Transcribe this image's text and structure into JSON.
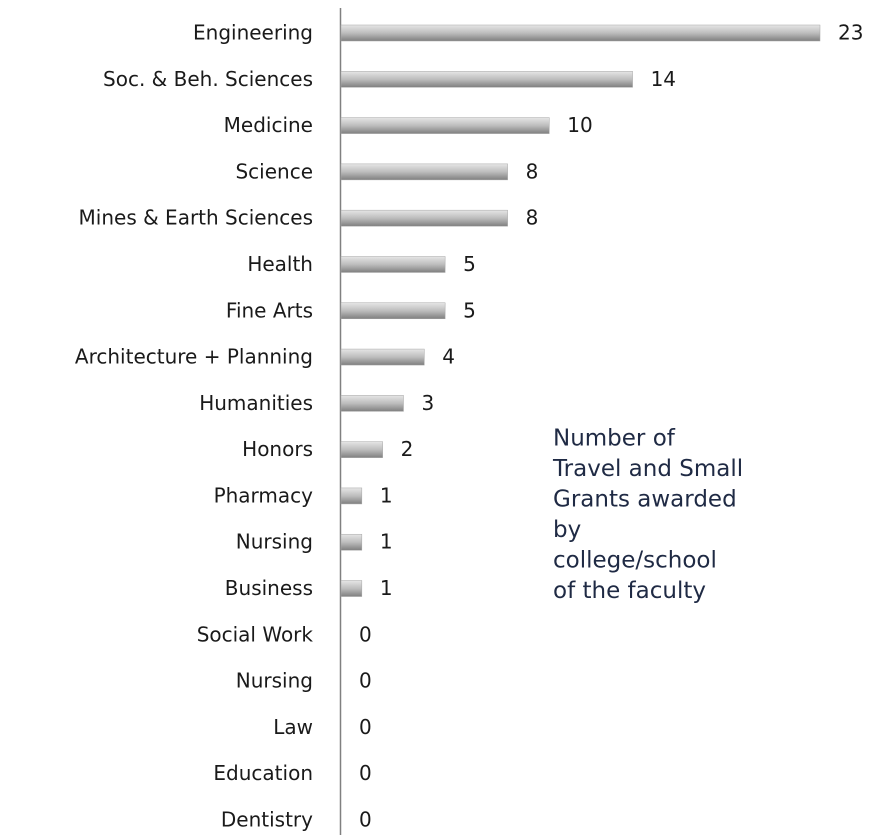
{
  "chart_data": {
    "type": "barh",
    "categories": [
      "Engineering",
      "Soc. & Beh. Sciences",
      "Medicine",
      "Science",
      "Mines & Earth Sciences",
      "Health",
      "Fine Arts",
      "Architecture + Planning",
      "Humanities",
      "Honors",
      "Pharmacy",
      "Nursing",
      "Business",
      "Social Work",
      "Nursing",
      "Law",
      "Education",
      "Dentistry"
    ],
    "values": [
      23,
      14,
      10,
      8,
      8,
      5,
      5,
      4,
      3,
      2,
      1,
      1,
      1,
      0,
      0,
      0,
      0,
      0
    ],
    "color": "#a6a6a6",
    "annotation": [
      "Number of",
      "Travel and Small",
      "Grants awarded",
      "by",
      "college/school",
      "of the faculty"
    ]
  }
}
